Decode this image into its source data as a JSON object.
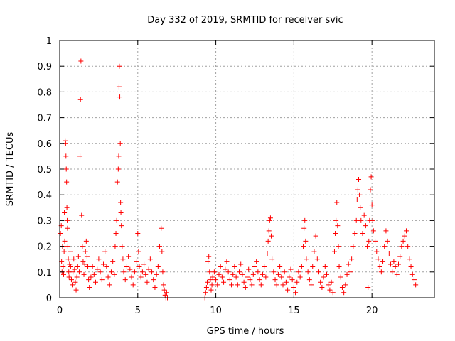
{
  "chart_data": {
    "type": "scatter",
    "title": "Day 332 of 2019, SRMTID for receiver svic",
    "xlabel": "GPS time / hours",
    "ylabel": "SRMTID / TECUs",
    "xlim": [
      0,
      24
    ],
    "ylim": [
      0,
      1
    ],
    "xticks": [
      0,
      5,
      10,
      15,
      20
    ],
    "xtick_labels": [
      "0",
      "5",
      "10",
      "15",
      "20"
    ],
    "yticks": [
      0,
      0.1,
      0.2,
      0.3,
      0.4,
      0.5,
      0.6,
      0.7,
      0.8,
      0.9,
      1
    ],
    "ytick_labels": [
      "0",
      "0.1",
      "0.2",
      "0.3",
      "0.4",
      "0.5",
      "0.6",
      "0.7",
      "0.8",
      "0.9",
      "1"
    ],
    "grid": true,
    "marker": "+",
    "series": [
      {
        "name": "SRMTID",
        "color": "#ff0000",
        "points": [
          [
            0.05,
            0.25
          ],
          [
            0.1,
            0.28
          ],
          [
            0.12,
            0.14
          ],
          [
            0.15,
            0.1
          ],
          [
            0.18,
            0.2
          ],
          [
            0.22,
            0.12
          ],
          [
            0.25,
            0.09
          ],
          [
            0.28,
            0.18
          ],
          [
            0.3,
            0.33
          ],
          [
            0.32,
            0.22
          ],
          [
            0.35,
            0.61
          ],
          [
            0.38,
            0.6
          ],
          [
            0.4,
            0.55
          ],
          [
            0.42,
            0.5
          ],
          [
            0.44,
            0.45
          ],
          [
            0.46,
            0.35
          ],
          [
            0.48,
            0.3
          ],
          [
            0.5,
            0.27
          ],
          [
            0.52,
            0.2
          ],
          [
            0.55,
            0.15
          ],
          [
            0.58,
            0.1
          ],
          [
            0.6,
            0.08
          ],
          [
            0.63,
            0.13
          ],
          [
            0.66,
            0.18
          ],
          [
            0.7,
            0.12
          ],
          [
            0.75,
            0.07
          ],
          [
            0.8,
            0.05
          ],
          [
            0.85,
            0.1
          ],
          [
            0.9,
            0.15
          ],
          [
            0.95,
            0.11
          ],
          [
            1.0,
            0.06
          ],
          [
            1.05,
            0.03
          ],
          [
            1.1,
            0.08
          ],
          [
            1.15,
            0.12
          ],
          [
            1.2,
            0.16
          ],
          [
            1.25,
            0.1
          ],
          [
            1.3,
            0.55
          ],
          [
            1.33,
            0.77
          ],
          [
            1.36,
            0.92
          ],
          [
            1.4,
            0.32
          ],
          [
            1.45,
            0.2
          ],
          [
            1.5,
            0.14
          ],
          [
            1.55,
            0.09
          ],
          [
            1.6,
            0.13
          ],
          [
            1.65,
            0.18
          ],
          [
            1.7,
            0.22
          ],
          [
            1.75,
            0.16
          ],
          [
            1.8,
            0.12
          ],
          [
            1.85,
            0.07
          ],
          [
            1.9,
            0.04
          ],
          [
            2.0,
            0.08
          ],
          [
            2.1,
            0.12
          ],
          [
            2.2,
            0.09
          ],
          [
            2.3,
            0.06
          ],
          [
            2.4,
            0.11
          ],
          [
            2.5,
            0.15
          ],
          [
            2.6,
            0.1
          ],
          [
            2.7,
            0.07
          ],
          [
            2.8,
            0.13
          ],
          [
            2.9,
            0.18
          ],
          [
            3.0,
            0.12
          ],
          [
            3.1,
            0.08
          ],
          [
            3.2,
            0.05
          ],
          [
            3.3,
            0.1
          ],
          [
            3.4,
            0.14
          ],
          [
            3.5,
            0.09
          ],
          [
            3.55,
            0.2
          ],
          [
            3.6,
            0.25
          ],
          [
            3.65,
            0.3
          ],
          [
            3.7,
            0.45
          ],
          [
            3.75,
            0.5
          ],
          [
            3.78,
            0.55
          ],
          [
            3.8,
            0.82
          ],
          [
            3.82,
            0.9
          ],
          [
            3.85,
            0.78
          ],
          [
            3.88,
            0.6
          ],
          [
            3.9,
            0.37
          ],
          [
            3.92,
            0.33
          ],
          [
            3.95,
            0.28
          ],
          [
            4.0,
            0.2
          ],
          [
            4.05,
            0.15
          ],
          [
            4.1,
            0.1
          ],
          [
            4.2,
            0.07
          ],
          [
            4.3,
            0.12
          ],
          [
            4.4,
            0.16
          ],
          [
            4.5,
            0.11
          ],
          [
            4.6,
            0.08
          ],
          [
            4.7,
            0.05
          ],
          [
            4.8,
            0.1
          ],
          [
            4.9,
            0.14
          ],
          [
            5.0,
            0.25
          ],
          [
            5.05,
            0.18
          ],
          [
            5.1,
            0.12
          ],
          [
            5.2,
            0.08
          ],
          [
            5.3,
            0.1
          ],
          [
            5.4,
            0.13
          ],
          [
            5.5,
            0.09
          ],
          [
            5.6,
            0.06
          ],
          [
            5.7,
            0.11
          ],
          [
            5.8,
            0.15
          ],
          [
            5.9,
            0.1
          ],
          [
            6.0,
            0.07
          ],
          [
            6.1,
            0.04
          ],
          [
            6.2,
            0.09
          ],
          [
            6.3,
            0.12
          ],
          [
            6.4,
            0.2
          ],
          [
            6.5,
            0.27
          ],
          [
            6.55,
            0.18
          ],
          [
            6.6,
            0.1
          ],
          [
            6.65,
            0.05
          ],
          [
            6.7,
            0.03
          ],
          [
            6.75,
            0.01
          ],
          [
            6.8,
            0.0
          ],
          [
            6.85,
            0.02
          ],
          [
            6.9,
            0.0
          ],
          [
            9.3,
            0.0
          ],
          [
            9.35,
            0.02
          ],
          [
            9.4,
            0.04
          ],
          [
            9.45,
            0.06
          ],
          [
            9.5,
            0.14
          ],
          [
            9.55,
            0.16
          ],
          [
            9.6,
            0.1
          ],
          [
            9.65,
            0.07
          ],
          [
            9.7,
            0.03
          ],
          [
            9.75,
            0.05
          ],
          [
            9.8,
            0.08
          ],
          [
            9.9,
            0.1
          ],
          [
            10.0,
            0.07
          ],
          [
            10.1,
            0.05
          ],
          [
            10.2,
            0.09
          ],
          [
            10.3,
            0.12
          ],
          [
            10.4,
            0.08
          ],
          [
            10.5,
            0.06
          ],
          [
            10.6,
            0.11
          ],
          [
            10.7,
            0.14
          ],
          [
            10.8,
            0.1
          ],
          [
            10.9,
            0.07
          ],
          [
            11.0,
            0.05
          ],
          [
            11.1,
            0.09
          ],
          [
            11.2,
            0.12
          ],
          [
            11.3,
            0.08
          ],
          [
            11.4,
            0.05
          ],
          [
            11.5,
            0.1
          ],
          [
            11.6,
            0.13
          ],
          [
            11.7,
            0.09
          ],
          [
            11.8,
            0.06
          ],
          [
            11.9,
            0.04
          ],
          [
            12.0,
            0.08
          ],
          [
            12.1,
            0.11
          ],
          [
            12.2,
            0.07
          ],
          [
            12.3,
            0.05
          ],
          [
            12.4,
            0.09
          ],
          [
            12.5,
            0.12
          ],
          [
            12.6,
            0.14
          ],
          [
            12.7,
            0.1
          ],
          [
            12.8,
            0.07
          ],
          [
            12.9,
            0.05
          ],
          [
            13.0,
            0.09
          ],
          [
            13.1,
            0.12
          ],
          [
            13.2,
            0.08
          ],
          [
            13.3,
            0.17
          ],
          [
            13.35,
            0.22
          ],
          [
            13.4,
            0.26
          ],
          [
            13.45,
            0.3
          ],
          [
            13.5,
            0.31
          ],
          [
            13.55,
            0.24
          ],
          [
            13.6,
            0.15
          ],
          [
            13.7,
            0.1
          ],
          [
            13.8,
            0.07
          ],
          [
            13.9,
            0.05
          ],
          [
            14.0,
            0.09
          ],
          [
            14.1,
            0.12
          ],
          [
            14.2,
            0.08
          ],
          [
            14.3,
            0.05
          ],
          [
            14.4,
            0.1
          ],
          [
            14.5,
            0.06
          ],
          [
            14.6,
            0.03
          ],
          [
            14.7,
            0.08
          ],
          [
            14.8,
            0.11
          ],
          [
            14.9,
            0.07
          ],
          [
            15.0,
            0.04
          ],
          [
            15.1,
            0.02
          ],
          [
            15.2,
            0.06
          ],
          [
            15.3,
            0.1
          ],
          [
            15.4,
            0.08
          ],
          [
            15.5,
            0.12
          ],
          [
            15.6,
            0.2
          ],
          [
            15.65,
            0.27
          ],
          [
            15.7,
            0.3
          ],
          [
            15.75,
            0.22
          ],
          [
            15.8,
            0.15
          ],
          [
            15.9,
            0.1
          ],
          [
            16.0,
            0.07
          ],
          [
            16.1,
            0.05
          ],
          [
            16.2,
            0.12
          ],
          [
            16.3,
            0.18
          ],
          [
            16.4,
            0.24
          ],
          [
            16.5,
            0.15
          ],
          [
            16.6,
            0.1
          ],
          [
            16.7,
            0.06
          ],
          [
            16.8,
            0.04
          ],
          [
            16.9,
            0.08
          ],
          [
            17.0,
            0.12
          ],
          [
            17.1,
            0.09
          ],
          [
            17.2,
            0.05
          ],
          [
            17.3,
            0.03
          ],
          [
            17.4,
            0.06
          ],
          [
            17.5,
            0.02
          ],
          [
            17.6,
            0.18
          ],
          [
            17.65,
            0.25
          ],
          [
            17.7,
            0.3
          ],
          [
            17.75,
            0.37
          ],
          [
            17.8,
            0.28
          ],
          [
            17.85,
            0.2
          ],
          [
            17.9,
            0.12
          ],
          [
            18.0,
            0.08
          ],
          [
            18.1,
            0.04
          ],
          [
            18.2,
            0.02
          ],
          [
            18.3,
            0.05
          ],
          [
            18.4,
            0.09
          ],
          [
            18.5,
            0.13
          ],
          [
            18.6,
            0.1
          ],
          [
            18.7,
            0.15
          ],
          [
            18.8,
            0.2
          ],
          [
            18.9,
            0.25
          ],
          [
            19.0,
            0.3
          ],
          [
            19.05,
            0.38
          ],
          [
            19.1,
            0.42
          ],
          [
            19.15,
            0.46
          ],
          [
            19.2,
            0.4
          ],
          [
            19.25,
            0.35
          ],
          [
            19.3,
            0.3
          ],
          [
            19.4,
            0.25
          ],
          [
            19.5,
            0.32
          ],
          [
            19.6,
            0.28
          ],
          [
            19.7,
            0.2
          ],
          [
            19.75,
            0.04
          ],
          [
            19.8,
            0.22
          ],
          [
            19.85,
            0.3
          ],
          [
            19.9,
            0.42
          ],
          [
            19.95,
            0.47
          ],
          [
            20.0,
            0.36
          ],
          [
            20.05,
            0.3
          ],
          [
            20.1,
            0.26
          ],
          [
            20.2,
            0.22
          ],
          [
            20.3,
            0.18
          ],
          [
            20.4,
            0.15
          ],
          [
            20.5,
            0.12
          ],
          [
            20.6,
            0.1
          ],
          [
            20.7,
            0.14
          ],
          [
            20.8,
            0.2
          ],
          [
            20.9,
            0.26
          ],
          [
            21.0,
            0.22
          ],
          [
            21.1,
            0.17
          ],
          [
            21.2,
            0.13
          ],
          [
            21.3,
            0.1
          ],
          [
            21.4,
            0.14
          ],
          [
            21.5,
            0.12
          ],
          [
            21.6,
            0.09
          ],
          [
            21.7,
            0.13
          ],
          [
            21.8,
            0.16
          ],
          [
            21.9,
            0.2
          ],
          [
            22.0,
            0.22
          ],
          [
            22.1,
            0.24
          ],
          [
            22.2,
            0.26
          ],
          [
            22.3,
            0.2
          ],
          [
            22.4,
            0.15
          ],
          [
            22.5,
            0.12
          ],
          [
            22.6,
            0.09
          ],
          [
            22.7,
            0.07
          ],
          [
            22.8,
            0.05
          ]
        ]
      }
    ]
  },
  "colors": {
    "background": "#ffffff",
    "marker": "#ff0000",
    "grid": "#a0a0a0",
    "axis": "#000000"
  }
}
